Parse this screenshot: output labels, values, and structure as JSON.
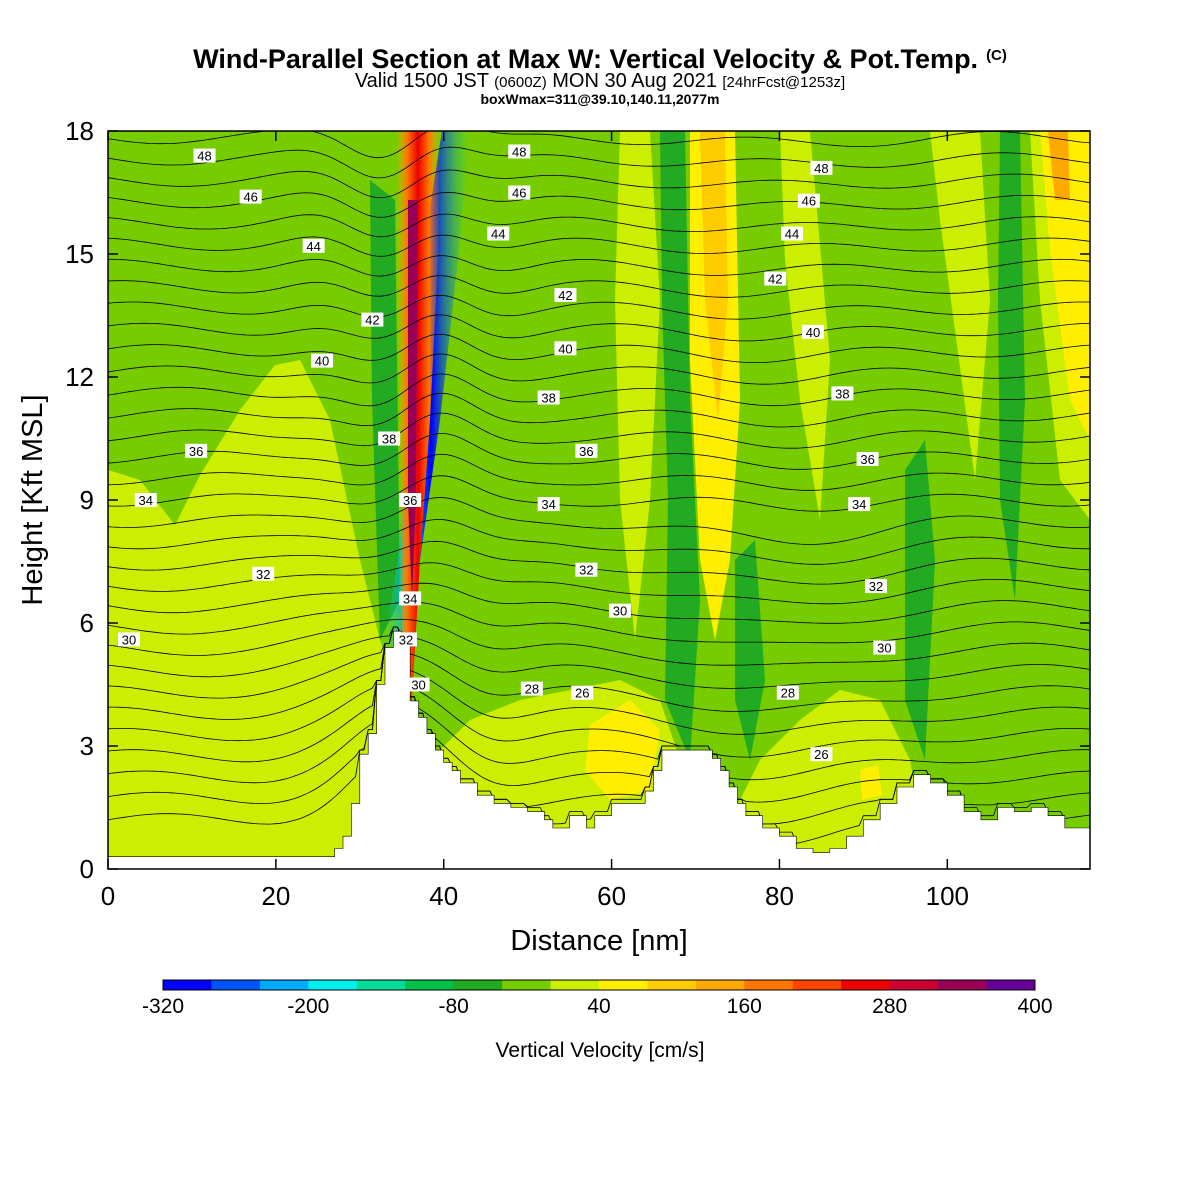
{
  "header": {
    "title": "Wind-Parallel Section at Max W: Vertical Velocity & Pot.Temp.",
    "copyright": "(C)",
    "valid_prefix": "Valid 1500 JST",
    "valid_zulu": "(0600Z)",
    "valid_date": "MON 30 Aug 2021",
    "forecast": "[24hrFcst@1253z]",
    "boxwmax": "boxWmax=311@39.10,140.11,2077m"
  },
  "chart_data": {
    "type": "heatmap",
    "xlabel": "Distance [nm]",
    "ylabel": "Height [Kft MSL]",
    "xlim": [
      0,
      117
    ],
    "ylim": [
      0,
      18
    ],
    "x_ticks": [
      "0",
      "20",
      "40",
      "60",
      "80",
      "100"
    ],
    "y_ticks": [
      "0",
      "3",
      "6",
      "9",
      "12",
      "15",
      "18"
    ],
    "colorbar": {
      "title": "Vertical Velocity [cm/s]",
      "min": -320,
      "max": 400,
      "step": 40,
      "tick_labels": [
        "-320",
        "-200",
        "-80",
        "40",
        "160",
        "280",
        "400"
      ],
      "colors": [
        "#0000ff",
        "#0055ff",
        "#00aaff",
        "#00eeee",
        "#00dd99",
        "#00c04a",
        "#22aa22",
        "#77cc00",
        "#ccee00",
        "#ffee00",
        "#ffcc00",
        "#ffaa00",
        "#ff7700",
        "#ff4400",
        "#ee0000",
        "#cc0033",
        "#990055",
        "#660099"
      ]
    },
    "terrain": [
      [
        0,
        0.3
      ],
      [
        5,
        0.3
      ],
      [
        10,
        0.3
      ],
      [
        15,
        0.3
      ],
      [
        20,
        0.3
      ],
      [
        25,
        0.3
      ],
      [
        27,
        0.5
      ],
      [
        28,
        0.8
      ],
      [
        29,
        1.6
      ],
      [
        30,
        2.8
      ],
      [
        31,
        3.3
      ],
      [
        32,
        4.5
      ],
      [
        33,
        5.4
      ],
      [
        34,
        5.8
      ],
      [
        35,
        5.5
      ],
      [
        36,
        4.1
      ],
      [
        37,
        3.7
      ],
      [
        38,
        3.3
      ],
      [
        39,
        2.9
      ],
      [
        40,
        2.6
      ],
      [
        41,
        2.4
      ],
      [
        42,
        2.1
      ],
      [
        44,
        1.8
      ],
      [
        46,
        1.6
      ],
      [
        48,
        1.5
      ],
      [
        50,
        1.4
      ],
      [
        52,
        1.2
      ],
      [
        53,
        1.0
      ],
      [
        55,
        1.3
      ],
      [
        57,
        1.0
      ],
      [
        58,
        1.3
      ],
      [
        60,
        1.6
      ],
      [
        62,
        1.6
      ],
      [
        64,
        1.9
      ],
      [
        65,
        2.4
      ],
      [
        66,
        2.9
      ],
      [
        70,
        2.9
      ],
      [
        72,
        2.7
      ],
      [
        73,
        2.4
      ],
      [
        74,
        2.0
      ],
      [
        75,
        1.6
      ],
      [
        76,
        1.3
      ],
      [
        78,
        1.0
      ],
      [
        80,
        0.8
      ],
      [
        82,
        0.5
      ],
      [
        84,
        0.4
      ],
      [
        86,
        0.5
      ],
      [
        88,
        0.8
      ],
      [
        90,
        1.2
      ],
      [
        92,
        1.6
      ],
      [
        94,
        2.0
      ],
      [
        96,
        2.3
      ],
      [
        98,
        2.1
      ],
      [
        100,
        1.8
      ],
      [
        102,
        1.4
      ],
      [
        104,
        1.2
      ],
      [
        106,
        1.5
      ],
      [
        108,
        1.4
      ],
      [
        110,
        1.5
      ],
      [
        112,
        1.3
      ],
      [
        114,
        1.0
      ],
      [
        117,
        1.0
      ]
    ],
    "theta_labels": [
      {
        "text": "48",
        "x": 11.5,
        "y": 17.4
      },
      {
        "text": "46",
        "x": 17,
        "y": 16.4
      },
      {
        "text": "44",
        "x": 24.5,
        "y": 15.2
      },
      {
        "text": "42",
        "x": 31.5,
        "y": 13.4
      },
      {
        "text": "40",
        "x": 25.5,
        "y": 12.4
      },
      {
        "text": "38",
        "x": 33.5,
        "y": 10.5
      },
      {
        "text": "36",
        "x": 10.5,
        "y": 10.2
      },
      {
        "text": "34",
        "x": 4.5,
        "y": 9.0
      },
      {
        "text": "32",
        "x": 18.5,
        "y": 7.2
      },
      {
        "text": "30",
        "x": 2.5,
        "y": 5.6
      },
      {
        "text": "36",
        "x": 36,
        "y": 9.0
      },
      {
        "text": "34",
        "x": 36,
        "y": 6.6
      },
      {
        "text": "32",
        "x": 35.5,
        "y": 5.6
      },
      {
        "text": "30",
        "x": 37,
        "y": 4.5
      },
      {
        "text": "48",
        "x": 49,
        "y": 17.5
      },
      {
        "text": "46",
        "x": 49,
        "y": 16.5
      },
      {
        "text": "44",
        "x": 46.5,
        "y": 15.5
      },
      {
        "text": "42",
        "x": 54.5,
        "y": 14.0
      },
      {
        "text": "40",
        "x": 54.5,
        "y": 12.7
      },
      {
        "text": "38",
        "x": 52.5,
        "y": 11.5
      },
      {
        "text": "36",
        "x": 57,
        "y": 10.2
      },
      {
        "text": "34",
        "x": 52.5,
        "y": 8.9
      },
      {
        "text": "32",
        "x": 57,
        "y": 7.3
      },
      {
        "text": "30",
        "x": 61,
        "y": 6.3
      },
      {
        "text": "28",
        "x": 50.5,
        "y": 4.4
      },
      {
        "text": "26",
        "x": 56.5,
        "y": 4.3
      },
      {
        "text": "48",
        "x": 85,
        "y": 17.1
      },
      {
        "text": "46",
        "x": 83.5,
        "y": 16.3
      },
      {
        "text": "44",
        "x": 81.5,
        "y": 15.5
      },
      {
        "text": "42",
        "x": 79.5,
        "y": 14.4
      },
      {
        "text": "40",
        "x": 84,
        "y": 13.1
      },
      {
        "text": "38",
        "x": 87.5,
        "y": 11.6
      },
      {
        "text": "36",
        "x": 90.5,
        "y": 10.0
      },
      {
        "text": "34",
        "x": 89.5,
        "y": 8.9
      },
      {
        "text": "32",
        "x": 91.5,
        "y": 6.9
      },
      {
        "text": "30",
        "x": 92.5,
        "y": 5.4
      },
      {
        "text": "28",
        "x": 81,
        "y": 4.3
      },
      {
        "text": "26",
        "x": 85,
        "y": 2.8
      }
    ],
    "grid": false,
    "legend": "colorbar-bottom"
  }
}
